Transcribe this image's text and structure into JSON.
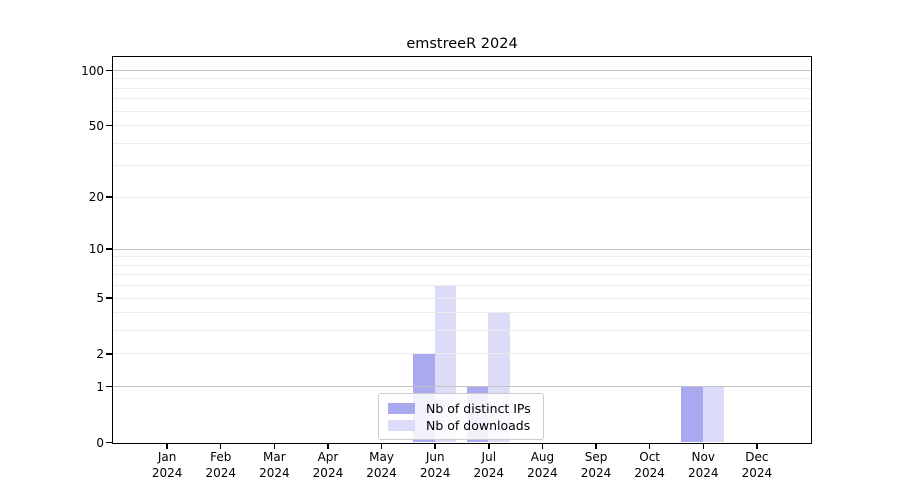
{
  "title": "emstreeR 2024",
  "chart_data": {
    "type": "bar",
    "title": "emstreeR 2024",
    "categories": [
      "Jan",
      "Feb",
      "Mar",
      "Apr",
      "May",
      "Jun",
      "Jul",
      "Aug",
      "Sep",
      "Oct",
      "Nov",
      "Dec"
    ],
    "category_year": "2024",
    "series": [
      {
        "name": "Nb of distinct IPs",
        "color": "#a9a9f0",
        "values": [
          0,
          0,
          0,
          0,
          0,
          2,
          1,
          0,
          0,
          0,
          1,
          0
        ]
      },
      {
        "name": "Nb of downloads",
        "color": "#dcdcf8",
        "values": [
          0,
          0,
          0,
          0,
          0,
          6,
          4,
          0,
          0,
          0,
          1,
          0
        ]
      }
    ],
    "y_axis": {
      "scale": "log1p",
      "ticks": [
        0,
        1,
        2,
        5,
        10,
        20,
        50,
        100
      ],
      "max": 100,
      "grid_major": [
        1,
        10,
        100
      ],
      "grid_minor": [
        2,
        3,
        4,
        5,
        6,
        7,
        8,
        9,
        20,
        30,
        40,
        50,
        60,
        70,
        80,
        90
      ]
    },
    "x_axis": {
      "tick_count": 12
    },
    "legend": {
      "position": "lower-center-inside",
      "entries": [
        "Nb of distinct IPs",
        "Nb of downloads"
      ]
    },
    "grid": "horizontal",
    "ylim_label_range": [
      0,
      100
    ]
  }
}
